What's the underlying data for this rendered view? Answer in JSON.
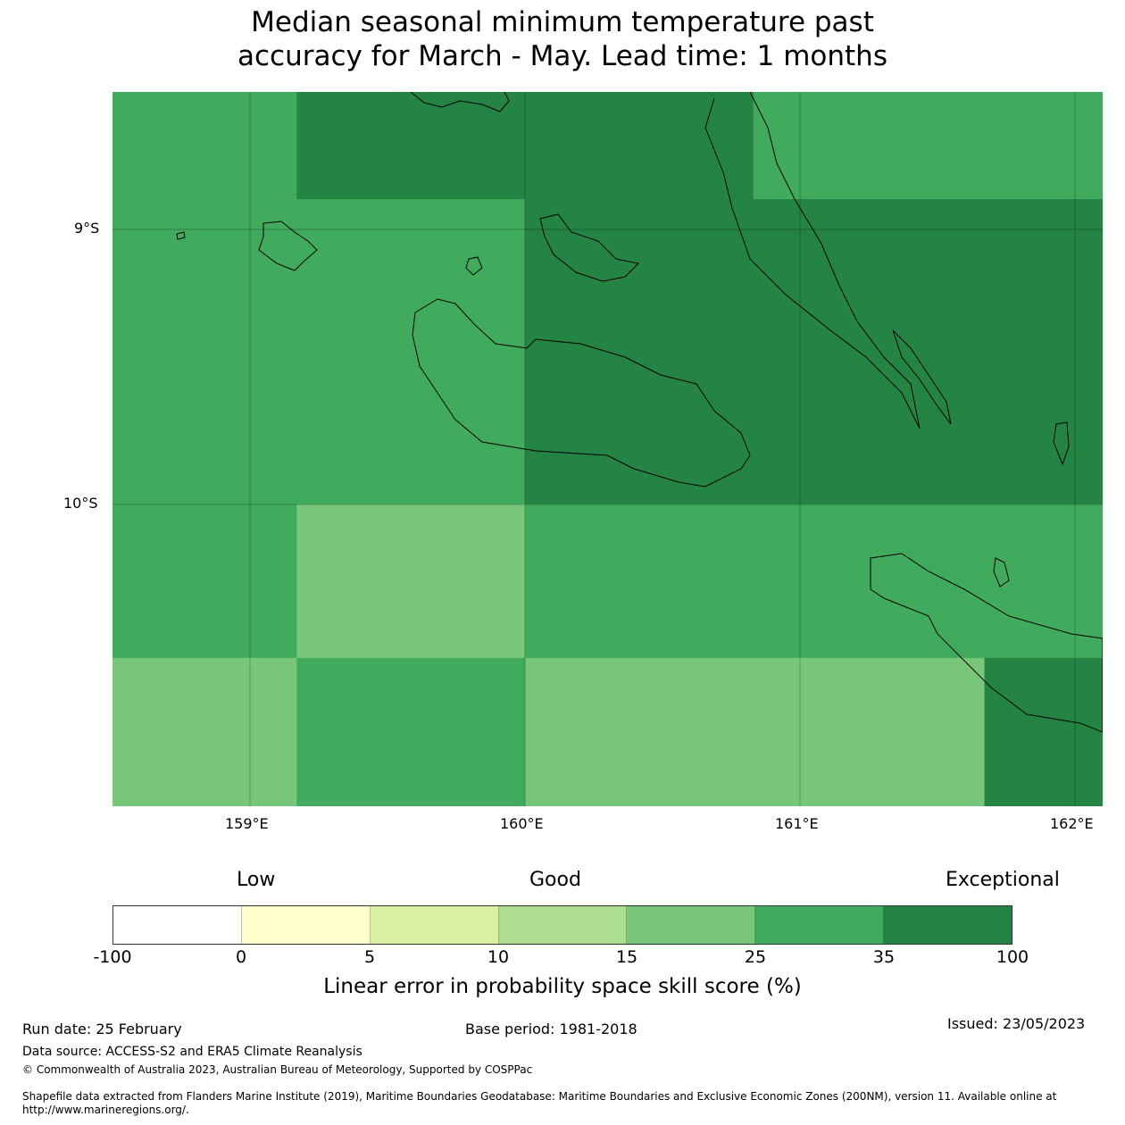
{
  "title_line1": "Median seasonal minimum temperature past",
  "title_line2": "accuracy for March - May. Lead time: 1 months",
  "chart_data": {
    "type": "heatmap",
    "title": "Median seasonal minimum temperature past accuracy for March - May. Lead time: 1 months",
    "x_ticks": [
      "159°E",
      "160°E",
      "161°E",
      "162°E"
    ],
    "y_ticks": [
      "9°S",
      "10°S"
    ],
    "lon_range": [
      158.5,
      162.1
    ],
    "lat_range": [
      -8.5,
      -11.1
    ],
    "lon_edges": [
      158.5,
      159.17,
      160.0,
      160.83,
      161.67,
      162.1
    ],
    "lat_edges": [
      -8.5,
      -8.89,
      -10.0,
      -10.56,
      -11.1
    ],
    "cell_class_index": [
      [
        5,
        6,
        6,
        5,
        5
      ],
      [
        5,
        5,
        6,
        6,
        6
      ],
      [
        5,
        4,
        5,
        5,
        5
      ],
      [
        4,
        5,
        4,
        4,
        6
      ]
    ],
    "cell_skill_ranges": [
      [
        "25-35",
        "35-100",
        "35-100",
        "25-35",
        "25-35"
      ],
      [
        "25-35",
        "25-35",
        "35-100",
        "35-100",
        "35-100"
      ],
      [
        "25-35",
        "15-25",
        "25-35",
        "25-35",
        "25-35"
      ],
      [
        "15-25",
        "25-35",
        "15-25",
        "15-25",
        "35-100"
      ]
    ]
  },
  "colorbar": {
    "category_labels": [
      "Low",
      "Good",
      "Exceptional"
    ],
    "bounds": [
      "-100",
      "0",
      "5",
      "10",
      "15",
      "25",
      "35",
      "100"
    ],
    "colors": [
      "#ffffff",
      "#ffffcc",
      "#d9f0a3",
      "#addd8e",
      "#78c679",
      "#41ab5d",
      "#238443"
    ],
    "label": "Linear error in probability space skill score (%)"
  },
  "footer": {
    "run_date": "Run date: 25 February",
    "base_period": "Base period: 1981-2018",
    "issued": "Issued: 23/05/2023",
    "data_source": "Data source: ACCESS-S2 and ERA5 Climate Reanalysis",
    "copyright": "© Commonwealth of Australia 2023, Australian Bureau of Meteorology, Supported by COSPPac",
    "shapefile_line1": "Shapefile data extracted from Flanders Marine Institute (2019), Maritime Boundaries Geodatabase: Maritime Boundaries and Exclusive Economic Zones (200NM), version 11. Available online at",
    "shapefile_line2": "http://www.marineregions.org/."
  }
}
